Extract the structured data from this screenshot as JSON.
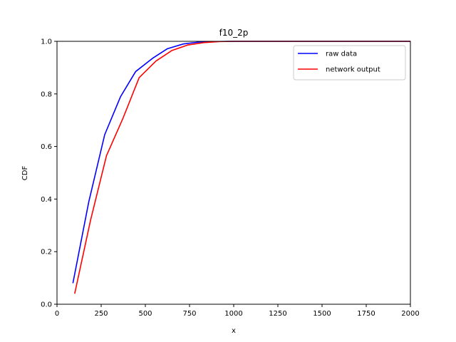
{
  "chart_data": {
    "type": "line",
    "title": "f10_2p",
    "xlabel": "x",
    "ylabel": "CDF",
    "xlim": [
      0,
      2000
    ],
    "ylim": [
      0.0,
      1.0
    ],
    "xticks": [
      0,
      250,
      500,
      750,
      1000,
      1250,
      1500,
      1750,
      2000
    ],
    "yticks": [
      0.0,
      0.2,
      0.4,
      0.6,
      0.8,
      1.0
    ],
    "xtick_labels": [
      "0",
      "250",
      "500",
      "750",
      "1000",
      "1250",
      "1500",
      "1750",
      "2000"
    ],
    "ytick_labels": [
      "0.0",
      "0.2",
      "0.4",
      "0.6",
      "0.8",
      "1.0"
    ],
    "grid": false,
    "legend_position": "top-right",
    "series": [
      {
        "name": "raw data",
        "color": "#0000ff",
        "x": [
          90,
          180,
          270,
          360,
          445,
          540,
          625,
          715,
          800,
          890,
          980,
          1100,
          1300,
          1500,
          1700,
          1900,
          2000
        ],
        "y": [
          0.08,
          0.39,
          0.645,
          0.79,
          0.885,
          0.935,
          0.972,
          0.99,
          0.997,
          0.999,
          1.0,
          1.0,
          1.0,
          1.0,
          1.0,
          1.0,
          1.0
        ]
      },
      {
        "name": "network output",
        "color": "#ff0000",
        "x": [
          100,
          190,
          280,
          375,
          465,
          560,
          650,
          740,
          830,
          920,
          1010,
          1200,
          1400,
          1600,
          1800,
          2000
        ],
        "y": [
          0.04,
          0.32,
          0.565,
          0.71,
          0.862,
          0.925,
          0.965,
          0.986,
          0.995,
          0.999,
          1.0,
          1.0,
          1.0,
          1.0,
          1.0,
          1.0
        ]
      }
    ]
  }
}
